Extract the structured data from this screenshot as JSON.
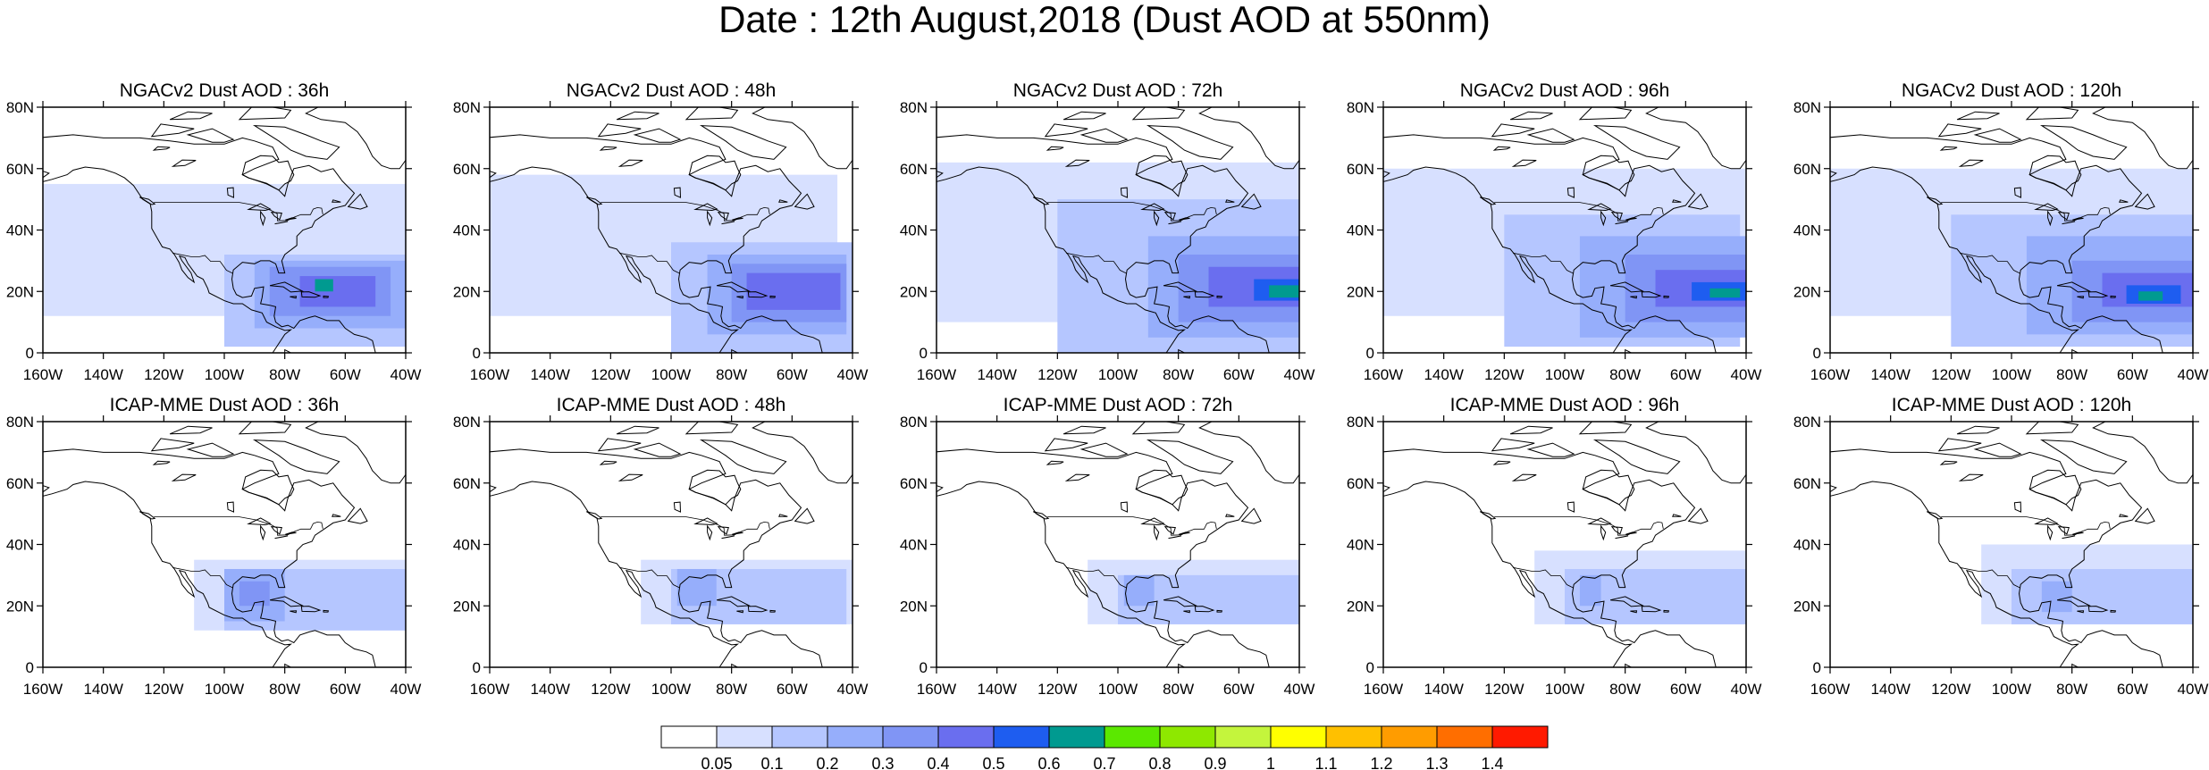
{
  "title": "Date : 12th August,2018 (Dust AOD at 550nm)",
  "x_ticks": [
    "160W",
    "140W",
    "120W",
    "100W",
    "80W",
    "60W",
    "40W"
  ],
  "y_ticks": [
    "0",
    "20N",
    "40N",
    "60N",
    "80N"
  ],
  "panels": [
    {
      "title": "NGACv2 Dust AOD : 36h",
      "model": "NGACv2",
      "lead": 36
    },
    {
      "title": "NGACv2 Dust AOD : 48h",
      "model": "NGACv2",
      "lead": 48
    },
    {
      "title": "NGACv2 Dust AOD : 72h",
      "model": "NGACv2",
      "lead": 72
    },
    {
      "title": "NGACv2 Dust AOD : 96h",
      "model": "NGACv2",
      "lead": 96
    },
    {
      "title": "NGACv2 Dust AOD : 120h",
      "model": "NGACv2",
      "lead": 120
    },
    {
      "title": "ICAP-MME Dust AOD : 36h",
      "model": "ICAP-MME",
      "lead": 36
    },
    {
      "title": "ICAP-MME Dust AOD : 48h",
      "model": "ICAP-MME",
      "lead": 48
    },
    {
      "title": "ICAP-MME Dust AOD : 72h",
      "model": "ICAP-MME",
      "lead": 72
    },
    {
      "title": "ICAP-MME Dust AOD : 96h",
      "model": "ICAP-MME",
      "lead": 96
    },
    {
      "title": "ICAP-MME Dust AOD : 120h",
      "model": "ICAP-MME",
      "lead": 120
    }
  ],
  "colorbar": {
    "labels": [
      "0.05",
      "0.1",
      "0.2",
      "0.3",
      "0.4",
      "0.5",
      "0.6",
      "0.7",
      "0.8",
      "0.9",
      "1",
      "1.1",
      "1.2",
      "1.3",
      "1.4"
    ],
    "colors": [
      "#ffffff",
      "#d7e0ff",
      "#b5c6ff",
      "#96aefb",
      "#8095f5",
      "#6a6eef",
      "#1e5df0",
      "#009a90",
      "#5be800",
      "#8ee800",
      "#c4f53c",
      "#ffff00",
      "#ffc000",
      "#ff9c00",
      "#ff6e00",
      "#ff1a00"
    ]
  }
}
